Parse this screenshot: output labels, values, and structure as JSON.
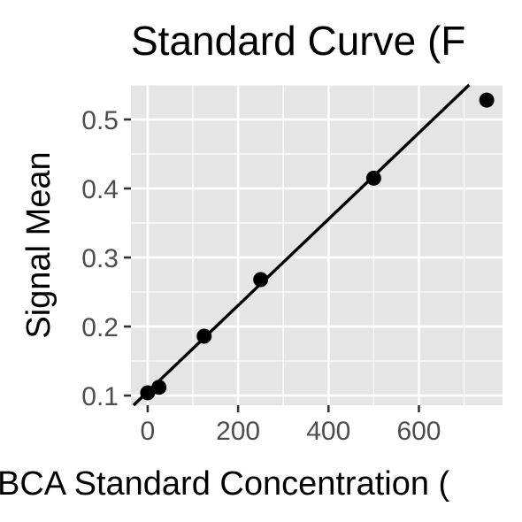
{
  "chart_data": {
    "type": "scatter",
    "title": "Standard Curve (F",
    "xlabel": "BCA Standard Concentration (",
    "ylabel": "Signal Mean",
    "xlim": [
      -37,
      785
    ],
    "ylim": [
      0.086,
      0.55
    ],
    "x_ticks": [
      0,
      200,
      400,
      600
    ],
    "x_tick_labels": [
      "0",
      "200",
      "400",
      "600"
    ],
    "y_ticks": [
      0.1,
      0.2,
      0.3,
      0.4,
      0.5
    ],
    "y_tick_labels": [
      "0.1",
      "0.2",
      "0.3",
      "0.4",
      "0.5"
    ],
    "grid": true,
    "background": "#e5e5e5",
    "grid_color": "#ffffff",
    "point_color": "#000000",
    "line_color": "#000000",
    "series": [
      {
        "points": [
          {
            "x": 0,
            "y": 0.104
          },
          {
            "x": 25,
            "y": 0.112
          },
          {
            "x": 125,
            "y": 0.186
          },
          {
            "x": 250,
            "y": 0.268
          },
          {
            "x": 500,
            "y": 0.415
          },
          {
            "x": 750,
            "y": 0.528
          }
        ]
      }
    ],
    "fit_line": {
      "slope": 0.000625,
      "intercept": 0.1055,
      "x_range": [
        -37,
        785
      ]
    }
  }
}
